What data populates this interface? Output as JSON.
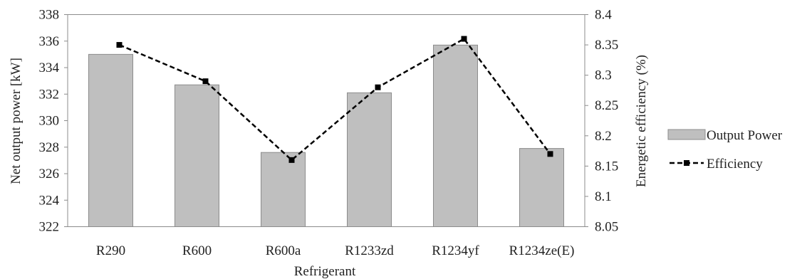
{
  "chart_data": {
    "type": "bar",
    "categories": [
      "R290",
      "R600",
      "R600a",
      "R1233zd",
      "R1234yf",
      "R1234ze(E)"
    ],
    "series": [
      {
        "name": "Output Power",
        "type": "bar",
        "axis": "left",
        "color": "#bfbfbf",
        "values": [
          335.0,
          332.7,
          327.6,
          332.1,
          335.7,
          327.9
        ]
      },
      {
        "name": "Efficiency",
        "type": "line",
        "axis": "right",
        "color": "#000000",
        "line_style": "dashed",
        "marker": "square",
        "values": [
          8.35,
          8.29,
          8.16,
          8.28,
          8.36,
          8.17
        ]
      }
    ],
    "xlabel": "Refrigerant",
    "ylabel": "Net output power [kW]",
    "y2label": "Energetic efficiency (%)",
    "ylim": [
      322,
      338
    ],
    "y2lim": [
      8.05,
      8.4
    ],
    "yticks": [
      "322",
      "324",
      "326",
      "328",
      "330",
      "332",
      "334",
      "336",
      "338"
    ],
    "y2ticks": [
      "8.05",
      "8.1",
      "8.15",
      "8.2",
      "8.25",
      "8.3",
      "8.35",
      "8.4"
    ],
    "grid": false,
    "legend_position": "right"
  }
}
